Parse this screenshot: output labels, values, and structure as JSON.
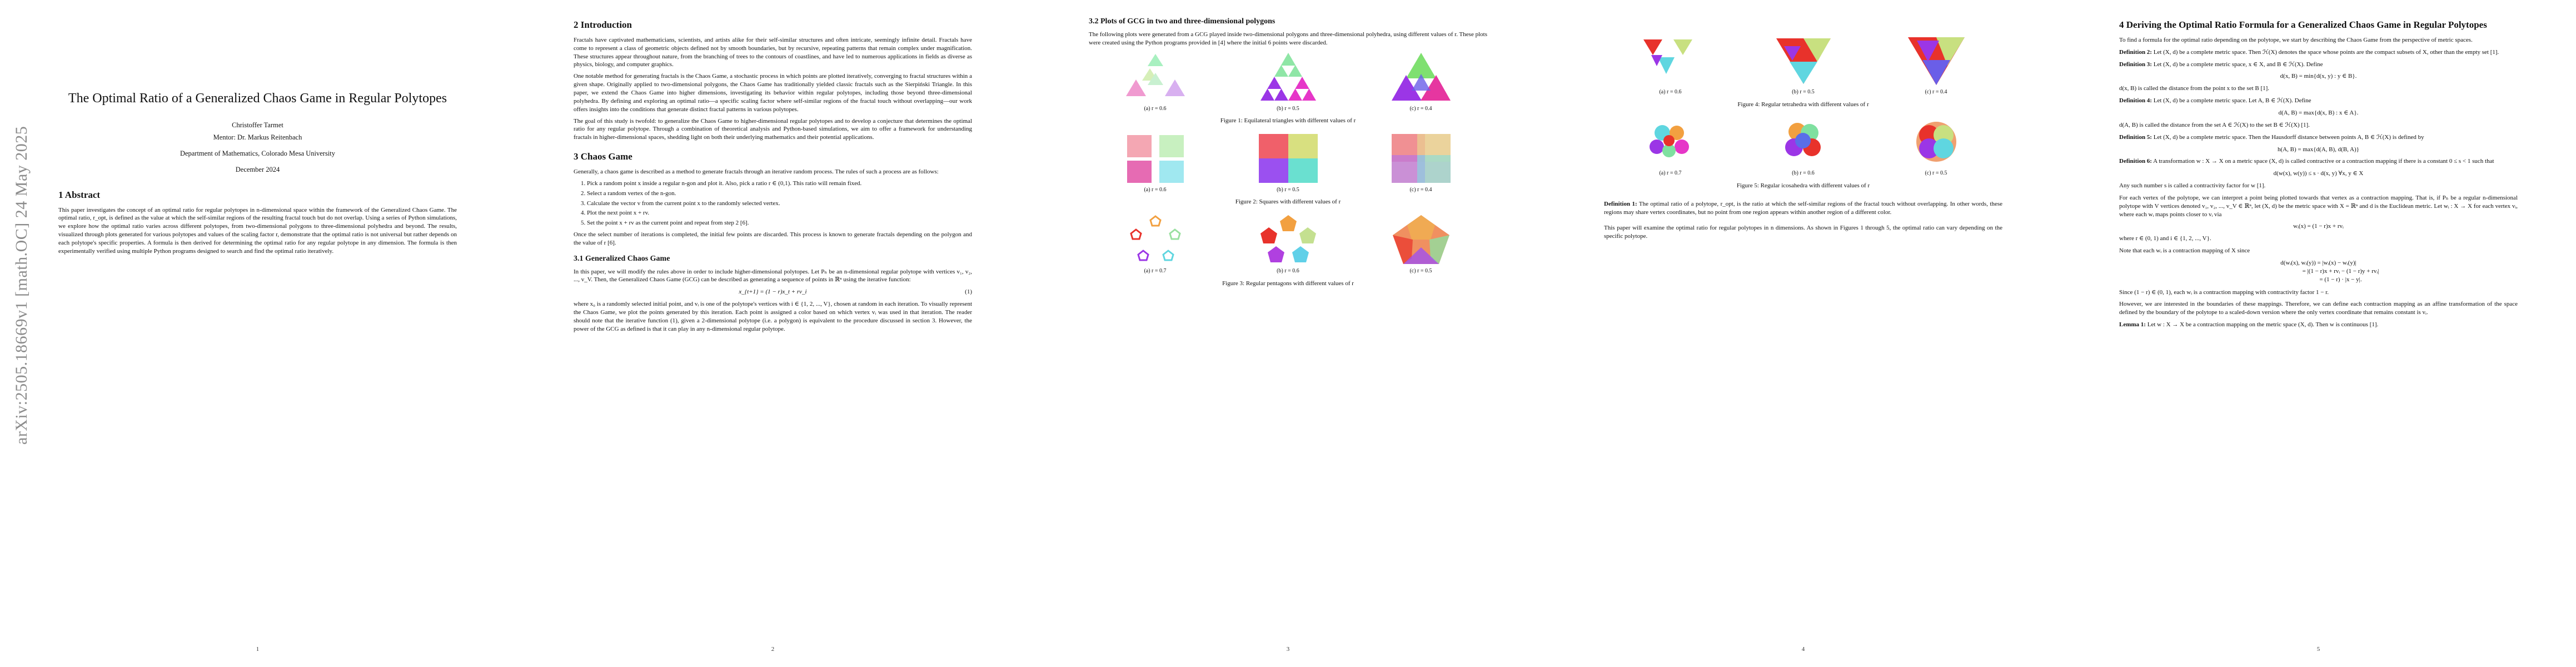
{
  "arxiv_stamp": "arXiv:2505.18669v1  [math.OC]  24 May 2025",
  "page_numbers": [
    "1",
    "2",
    "3",
    "4",
    "5"
  ],
  "page1": {
    "title": "The Optimal Ratio of a Generalized Chaos Game in Regular Polytopes",
    "author": "Christoffer Tarmet",
    "mentor": "Mentor: Dr. Markus Reitenbach",
    "affiliation": "Department of Mathematics, Colorado Mesa University",
    "date": "December 2024",
    "abstract_heading": "1   Abstract",
    "abstract": "This paper investigates the concept of an optimal ratio for regular polytopes in n-dimensional space within the framework of the Generalized Chaos Game. The optimal ratio, r_opt, is defined as the value at which the self-similar regions of the resulting fractal touch but do not overlap. Using a series of Python simulations, we explore how the optimal ratio varies across different polytopes, from two-dimensional polygons to three-dimensional polyhedra and beyond. The results, visualized through plots generated for various polytopes and values of the scaling factor r, demonstrate that the optimal ratio is not universal but rather depends on each polytope's specific properties. A formula is then derived for determining the optimal ratio for any regular polytope in any dimension. The formula is then experimentally verified using multiple Python programs designed to search and find the optimal ratio iteratively."
  },
  "page2": {
    "intro_heading": "2   Introduction",
    "intro_p1": "Fractals have captivated mathematicians, scientists, and artists alike for their self-similar structures and often intricate, seemingly infinite detail. Fractals have come to represent a class of geometric objects defined not by smooth boundaries, but by recursive, repeating patterns that remain complex under magnification. These structures appear throughout nature, from the branching of trees to the contours of coastlines, and have led to numerous applications in fields as diverse as physics, biology, and computer graphics.",
    "intro_p2": "One notable method for generating fractals is the Chaos Game, a stochastic process in which points are plotted iteratively, converging to fractal structures within a given shape. Originally applied to two-dimensional polygons, the Chaos Game has traditionally yielded classic fractals such as the Sierpiński Triangle. In this paper, we extend the Chaos Game into higher dimensions, investigating its behavior within regular polytopes, including those beyond three-dimensional polyhedra. By defining and exploring an optimal ratio—a specific scaling factor where self-similar regions of the fractal touch without overlapping—our work offers insights into the conditions that generate distinct fractal patterns in various polytopes.",
    "intro_p3": "The goal of this study is twofold: to generalize the Chaos Game to higher-dimensional regular polytopes and to develop a conjecture that determines the optimal ratio for any regular polytope. Through a combination of theoretical analysis and Python-based simulations, we aim to offer a framework for understanding fractals in higher-dimensional spaces, shedding light on both their underlying mathematics and their potential applications.",
    "chaos_heading": "3   Chaos Game",
    "chaos_p1": "Generally, a chaos game is described as a method to generate fractals through an iterative random process. The rules of such a process are as follows:",
    "steps": [
      "Pick a random point x inside a regular n-gon and plot it. Also, pick a ratio r ∈ (0,1). This ratio will remain fixed.",
      "Select a random vertex of the n-gon.",
      "Calculate the vector v from the current point x to the randomly selected vertex.",
      "Plot the next point x + rv.",
      "Set the point x + rv as the current point and repeat from step 2 [6]."
    ],
    "chaos_p2": "Once the select number of iterations is completed, the initial few points are discarded. This process is known to generate fractals depending on the polygon and the value of r [6].",
    "gcg_heading": "3.1   Generalized Chaos Game",
    "gcg_p1": "In this paper, we will modify the rules above in order to include higher-dimensional polytopes. Let Pₙ be an n-dimensional regular polytope with vertices v₁, v₂, ..., v_V. Then, the Generalized Chaos Game (GCG) can be described as generating a sequence of points in ℝⁿ using the iterative function:",
    "gcg_eq": "x_{t+1} = (1 − r)x_t + rv_i",
    "gcg_eq_num": "(1)",
    "gcg_p2": "where x₀ is a randomly selected initial point, and vᵢ is one of the polytope's vertices with i ∈ {1, 2, ..., V}, chosen at random in each iteration. To visually represent the Chaos Game, we plot the points generated by this iteration. Each point is assigned a color based on which vertex vᵢ was used in that iteration. The reader should note that the iterative function (1), given a 2-dimensional polytope (i.e. a polygon) is equivalent to the procedure discussed in section 3. However, the power of the GCG as defined is that it can play in any n-dimensional regular polytope."
  },
  "page3": {
    "heading": "3.2   Plots of GCG in two and three-dimensional polygons",
    "intro": "The following plots were generated from a GCG played inside two-dimensional polygons and three-dimensional polyhedra, using different values of r. These plots were created using the Python programs provided in [4] where the initial 6 points were discarded.",
    "fig1_subs": [
      "(a) r = 0.6",
      "(b) r = 0.5",
      "(c) r = 0.4"
    ],
    "fig1_caption": "Figure 1: Equilateral triangles with different values of r",
    "fig2_subs": [
      "(a) r = 0.6",
      "(b) r = 0.5",
      "(c) r = 0.4"
    ],
    "fig2_caption": "Figure 2: Squares with different values of r",
    "fig3_subs": [
      "(a) r = 0.7",
      "(b) r = 0.6",
      "(c) r = 0.5"
    ],
    "fig3_caption": "Figure 3: Regular pentagons with different values of r"
  },
  "page4": {
    "fig4_subs": [
      "(a) r = 0.6",
      "(b) r = 0.5",
      "(c) r = 0.4"
    ],
    "fig4_caption": "Figure 4: Regular tetrahedra with different values of r",
    "fig5_subs": [
      "(a) r = 0.7",
      "(b) r = 0.6",
      "(c) r = 0.5"
    ],
    "fig5_caption": "Figure 5: Regular icosahedra with different values of r",
    "def1_label": "Definition 1:",
    "def1": "The optimal ratio of a polytope, r_opt, is the ratio at which the self-similar regions of the fractal touch without overlapping. In other words, these regions may share vertex coordinates, but no point from one region appears within another region of a different color.",
    "para": "This paper will examine the optimal ratio for regular polytopes in n dimensions. As shown in Figures 1 through 5, the optimal ratio can vary depending on the specific polytope."
  },
  "page5": {
    "heading": "4   Deriving the Optimal Ratio Formula for a Generalized Chaos Game in Regular Polytopes",
    "intro": "To find a formula for the optimal ratio depending on the polytope, we start by describing the Chaos Game from the perspective of metric spaces.",
    "def2_label": "Definition 2:",
    "def2": "Let (X, d) be a complete metric space. Then ℋ(X) denotes the space whose points are the compact subsets of X, other than the empty set [1].",
    "def3_label": "Definition 3:",
    "def3": "Let (X, d) be a complete metric space, x ∈ X, and B ∈ ℋ(X). Define",
    "def3_eq": "d(x, B) = min{d(x, y) : y ∈ B}.",
    "def3_after": "d(x, B) is called the distance from the point x to the set B [1].",
    "def4_label": "Definition 4:",
    "def4": "Let (X, d) be a complete metric space. Let A, B ∈ ℋ(X). Define",
    "def4_eq": "d(A, B) = max{d(x, B) : x ∈ A}.",
    "def4_after": "d(A, B) is called the distance from the set A ∈ ℋ(X) to the set B ∈ ℋ(X) [1].",
    "def5_label": "Definition 5:",
    "def5": "Let (X, d) be a complete metric space. Then the Hausdorff distance between points A, B ∈ ℋ(X) is defined by",
    "def5_eq": "h(A, B) = max{d(A, B), d(B, A)}",
    "def6_label": "Definition 6:",
    "def6": "A transformation w : X → X on a metric space (X, d) is called contractive or a contraction mapping if there is a constant 0 ≤ s < 1 such that",
    "def6_eq": "d(w(x), w(y)) ≤ s · d(x, y)   ∀x, y ∈ X",
    "def6_after": "Any such number s is called a contractivity factor for w [1].",
    "para1": "For each vertex of the polytope, we can interpret a point being plotted towards that vertex as a contraction mapping. That is, if Pₙ be a regular n-dimensional polytope with V vertices denoted v₁, v₂, ..., v_V ∈ ℝⁿ, let (X, d) be the metric space with X = ℝⁿ and d is the Euclidean metric. Let wᵢ : X → X for each vertex vᵢ, where each wᵢ maps points closer to vᵢ via",
    "eq_w": "wᵢ(x) = (1 − r)x + rvᵢ",
    "para2": "where r ∈ (0, 1) and i ∈ {1, 2, ..., V}.",
    "para3": "Note that each wᵢ is a contraction mapping of X since",
    "align": [
      "d(wᵢ(x), wᵢ(y)) = |wᵢ(x) − wᵢ(y)|",
      "= |(1 − r)x + rvᵢ − (1 − r)y + rvᵢ|",
      "= (1 − r) · |x − y|."
    ],
    "para4": "Since (1 − r) ∈ (0, 1), each wᵢ is a contraction mapping with contractivity factor 1 − r.",
    "para5": "However, we are interested in the boundaries of these mappings. Therefore, we can define each contraction mapping as an affine transformation of the space defined by the boundary of the polytope to a scaled-down version where the only vertex coordinate that remains constant is vᵢ.",
    "lemma_label": "Lemma 1:",
    "lemma": "Let w : X → X be a contraction mapping on the metric space (X, d). Then w is continuous [1]."
  },
  "colors": {
    "red": "#e8322b",
    "orange": "#f29a3c",
    "yellow": "#d8e06a",
    "green": "#7fe0a0",
    "cyan": "#5fd6e0",
    "blue": "#5a6ee8",
    "purple": "#9b36e6",
    "magenta": "#e636c8"
  }
}
